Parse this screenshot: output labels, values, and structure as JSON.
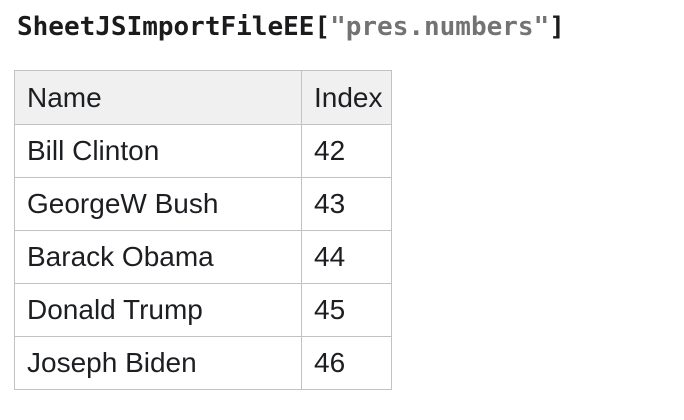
{
  "title": {
    "function_part": "SheetJSImportFileEE[",
    "string_part": "\"pres.numbers\"",
    "closing_part": "]"
  },
  "table": {
    "columns": [
      "Name",
      "Index"
    ],
    "rows": [
      {
        "name": "Bill Clinton",
        "index": "42"
      },
      {
        "name": "GeorgeW Bush",
        "index": "43"
      },
      {
        "name": "Barack Obama",
        "index": "44"
      },
      {
        "name": "Donald Trump",
        "index": "45"
      },
      {
        "name": "Joseph Biden",
        "index": "46"
      }
    ]
  },
  "colors": {
    "text": "#1c1e21",
    "title_text": "#1b1b1d",
    "title_string_gray": "#737373",
    "header_bg": "#f0f0f0",
    "border": "#c2c2c2",
    "page_bg": "#ffffff"
  }
}
